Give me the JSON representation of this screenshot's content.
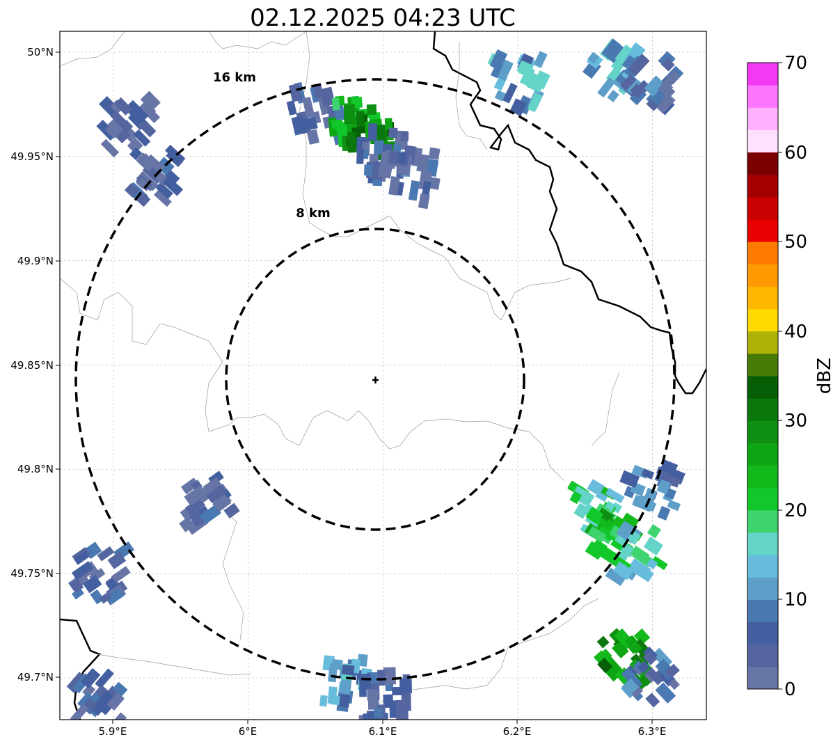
{
  "title": "02.12.2025 04:23 UTC",
  "map": {
    "x_ticks": [
      "5.9°E",
      "6°E",
      "6.1°E",
      "6.2°E",
      "6.3°E"
    ],
    "x_tick_values": [
      5.9,
      6.0,
      6.1,
      6.2,
      6.3
    ],
    "y_ticks": [
      "50°N",
      "49.95°N",
      "49.9°N",
      "49.85°N",
      "49.8°N",
      "49.75°N",
      "49.7°N"
    ],
    "y_tick_values": [
      50.0,
      49.95,
      49.9,
      49.85,
      49.8,
      49.75,
      49.7
    ],
    "lon_range": [
      5.86,
      6.34
    ],
    "lat_range": [
      49.68,
      50.01
    ],
    "gridlines": true,
    "radar_site": {
      "lon": 6.095,
      "lat": 49.843,
      "marker": "plus-icon"
    },
    "range_rings": [
      {
        "label": "8 km",
        "radius_km": 8
      },
      {
        "label": "16 km",
        "radius_km": 16
      }
    ],
    "reflectivity_cells": [
      {
        "lon": 6.05,
        "lat": 49.97,
        "dbz": 5
      },
      {
        "lon": 6.08,
        "lat": 49.965,
        "dbz": 22
      },
      {
        "lon": 6.09,
        "lat": 49.962,
        "dbz": 30
      },
      {
        "lon": 6.1,
        "lat": 49.95,
        "dbz": 6
      },
      {
        "lon": 6.12,
        "lat": 49.94,
        "dbz": 4
      },
      {
        "lon": 5.91,
        "lat": 49.965,
        "dbz": 3
      },
      {
        "lon": 5.93,
        "lat": 49.94,
        "dbz": 4
      },
      {
        "lon": 6.2,
        "lat": 49.985,
        "dbz": 12
      },
      {
        "lon": 6.27,
        "lat": 49.99,
        "dbz": 13
      },
      {
        "lon": 6.3,
        "lat": 49.985,
        "dbz": 6
      },
      {
        "lon": 6.26,
        "lat": 49.78,
        "dbz": 18
      },
      {
        "lon": 6.27,
        "lat": 49.77,
        "dbz": 24
      },
      {
        "lon": 6.29,
        "lat": 49.76,
        "dbz": 16
      },
      {
        "lon": 6.3,
        "lat": 49.79,
        "dbz": 8
      },
      {
        "lon": 6.28,
        "lat": 49.71,
        "dbz": 28
      },
      {
        "lon": 6.3,
        "lat": 49.7,
        "dbz": 6
      },
      {
        "lon": 5.97,
        "lat": 49.785,
        "dbz": 3
      },
      {
        "lon": 5.89,
        "lat": 49.75,
        "dbz": 4
      },
      {
        "lon": 6.07,
        "lat": 49.7,
        "dbz": 11
      },
      {
        "lon": 6.1,
        "lat": 49.69,
        "dbz": 5
      },
      {
        "lon": 5.89,
        "lat": 49.69,
        "dbz": 5
      }
    ]
  },
  "colorbar": {
    "label": "dBZ",
    "ticks": [
      "0",
      "10",
      "20",
      "30",
      "40",
      "50",
      "60",
      "70"
    ],
    "tick_values": [
      0,
      10,
      20,
      30,
      40,
      50,
      60,
      70
    ],
    "range": [
      0,
      70
    ],
    "step": 2.5,
    "colors": [
      "#6675a6",
      "#5465a0",
      "#445f9f",
      "#4a78b0",
      "#5e9fca",
      "#68bddd",
      "#64d3c8",
      "#3dd46f",
      "#11c72a",
      "#13b81a",
      "#0ea515",
      "#0e8f12",
      "#0b780e",
      "#065f07",
      "#487a06",
      "#aeb204",
      "#ffd900",
      "#ffb700",
      "#ff9a00",
      "#ff7a00",
      "#e80000",
      "#c80000",
      "#a40000",
      "#7a0000",
      "#ffe0ff",
      "#ffb0ff",
      "#ff75ff",
      "#f33af2"
    ]
  }
}
